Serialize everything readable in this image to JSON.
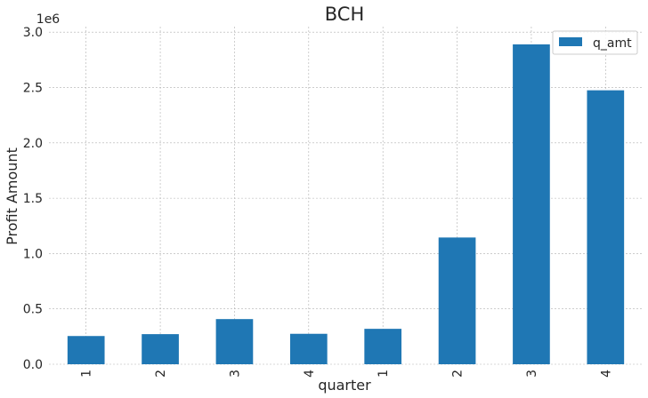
{
  "chart_data": {
    "type": "bar",
    "title": "BCH",
    "xlabel": "quarter",
    "ylabel": "Profit Amount",
    "y_offset_label": "1e6",
    "categories": [
      "1",
      "2",
      "3",
      "4",
      "1",
      "2",
      "3",
      "4"
    ],
    "series": [
      {
        "name": "q_amt",
        "values": [
          255000,
          272000,
          408000,
          275000,
          320000,
          1145000,
          2890000,
          2475000
        ]
      }
    ],
    "ylim": [
      0,
      3050000
    ],
    "yticks": [
      0,
      500000,
      1000000,
      1500000,
      2000000,
      2500000,
      3000000
    ],
    "ytick_labels": [
      "0.0",
      "0.5",
      "1.0",
      "1.5",
      "2.0",
      "2.5",
      "3.0"
    ],
    "grid": true,
    "legend_position": "top-right",
    "colors": {
      "bar": "#1f77b4"
    }
  }
}
